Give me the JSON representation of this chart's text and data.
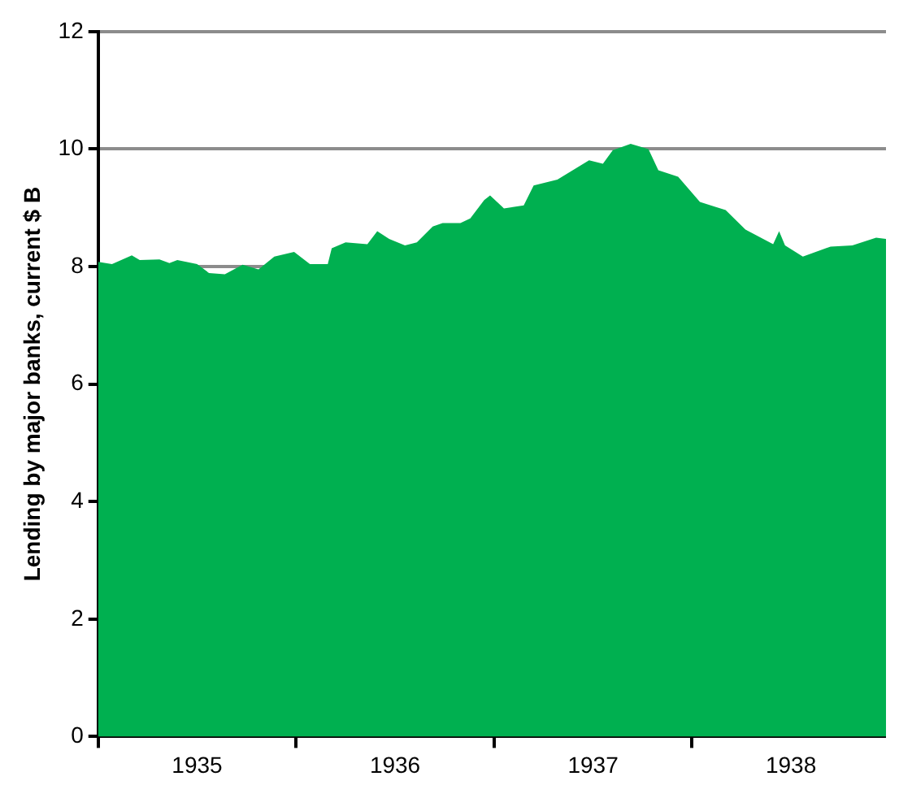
{
  "chart_data": {
    "type": "area",
    "ylabel": "Lending by major banks, current $ B",
    "x": [
      1935.0,
      1935.07,
      1935.17,
      1935.21,
      1935.31,
      1935.36,
      1935.4,
      1935.5,
      1935.56,
      1935.64,
      1935.73,
      1935.81,
      1935.89,
      1935.99,
      1936.07,
      1936.16,
      1936.18,
      1936.25,
      1936.36,
      1936.41,
      1936.47,
      1936.55,
      1936.61,
      1936.69,
      1936.74,
      1936.83,
      1936.88,
      1936.95,
      1936.98,
      1937.05,
      1937.15,
      1937.2,
      1937.32,
      1937.48,
      1937.55,
      1937.6,
      1937.69,
      1937.78,
      1937.83,
      1937.93,
      1938.04,
      1938.17,
      1938.27,
      1938.41,
      1938.44,
      1938.47,
      1938.56,
      1938.7,
      1938.81,
      1938.93,
      1938.98
    ],
    "series": [
      {
        "color": "#00b050",
        "values": [
          8.08,
          8.04,
          8.19,
          8.11,
          8.12,
          8.06,
          8.11,
          8.04,
          7.89,
          7.87,
          8.03,
          7.95,
          8.17,
          8.25,
          8.04,
          8.04,
          8.31,
          8.41,
          8.38,
          8.6,
          8.47,
          8.36,
          8.41,
          8.68,
          8.74,
          8.74,
          8.82,
          9.13,
          9.21,
          8.99,
          9.04,
          9.38,
          9.48,
          9.81,
          9.75,
          9.98,
          10.09,
          10.0,
          9.64,
          9.53,
          9.1,
          8.96,
          8.63,
          8.38,
          8.6,
          8.36,
          8.17,
          8.34,
          8.36,
          8.49,
          8.47
        ]
      }
    ],
    "xlim": [
      1935,
      1938.98
    ],
    "xticks": [
      {
        "value": 1935,
        "label": null
      },
      {
        "value": 1935.5,
        "label": "1935"
      },
      {
        "value": 1936,
        "label": null
      },
      {
        "value": 1936.5,
        "label": "1936"
      },
      {
        "value": 1937,
        "label": null
      },
      {
        "value": 1937.5,
        "label": "1937"
      },
      {
        "value": 1938,
        "label": null
      },
      {
        "value": 1938.5,
        "label": "1938"
      }
    ],
    "ylim": [
      0,
      12
    ],
    "yticks": [
      0,
      2,
      4,
      6,
      8,
      10,
      12
    ],
    "grid": "y",
    "legend": false
  }
}
